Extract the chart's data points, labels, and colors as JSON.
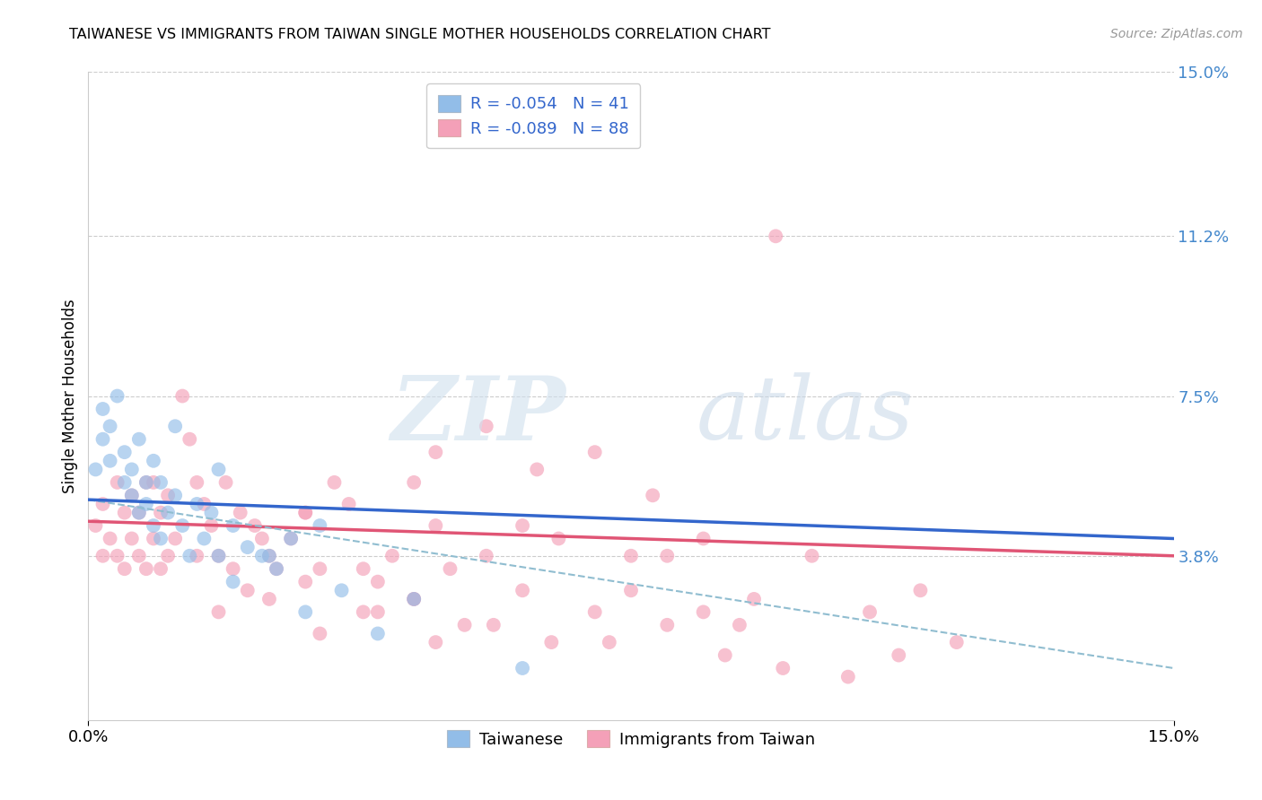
{
  "title": "TAIWANESE VS IMMIGRANTS FROM TAIWAN SINGLE MOTHER HOUSEHOLDS CORRELATION CHART",
  "source": "Source: ZipAtlas.com",
  "ylabel": "Single Mother Households",
  "xlim": [
    0,
    0.15
  ],
  "ylim": [
    0,
    0.15
  ],
  "ytick_values_right": [
    0.15,
    0.112,
    0.075,
    0.038
  ],
  "ytick_labels_right": [
    "15.0%",
    "11.2%",
    "7.5%",
    "3.8%"
  ],
  "legend_R1": "-0.054",
  "legend_N1": "41",
  "legend_R2": "-0.089",
  "legend_N2": "88",
  "color_taiwanese": "#92BDE8",
  "color_immigrants": "#F4A0B8",
  "trendline_taiwanese_color": "#3366CC",
  "trendline_immigrants_color": "#E05575",
  "trendline_dashed_color": "#90BDD0",
  "background_color": "#FFFFFF",
  "tw_trend_start": 0.051,
  "tw_trend_end": 0.042,
  "im_trend_start": 0.046,
  "im_trend_end": 0.038,
  "dash_trend_start": 0.051,
  "dash_trend_end": 0.012,
  "taiwanese_x": [
    0.001,
    0.002,
    0.002,
    0.003,
    0.003,
    0.004,
    0.005,
    0.005,
    0.006,
    0.006,
    0.007,
    0.007,
    0.008,
    0.008,
    0.009,
    0.009,
    0.01,
    0.01,
    0.011,
    0.012,
    0.013,
    0.014,
    0.015,
    0.016,
    0.017,
    0.018,
    0.02,
    0.022,
    0.024,
    0.026,
    0.028,
    0.032,
    0.035,
    0.04,
    0.012,
    0.018,
    0.025,
    0.03,
    0.045,
    0.06,
    0.02
  ],
  "taiwanese_y": [
    0.058,
    0.072,
    0.065,
    0.068,
    0.06,
    0.075,
    0.055,
    0.062,
    0.058,
    0.052,
    0.065,
    0.048,
    0.055,
    0.05,
    0.06,
    0.045,
    0.055,
    0.042,
    0.048,
    0.052,
    0.045,
    0.038,
    0.05,
    0.042,
    0.048,
    0.038,
    0.045,
    0.04,
    0.038,
    0.035,
    0.042,
    0.045,
    0.03,
    0.02,
    0.068,
    0.058,
    0.038,
    0.025,
    0.028,
    0.012,
    0.032
  ],
  "immigrants_x": [
    0.001,
    0.002,
    0.002,
    0.003,
    0.004,
    0.004,
    0.005,
    0.005,
    0.006,
    0.006,
    0.007,
    0.007,
    0.008,
    0.008,
    0.009,
    0.009,
    0.01,
    0.01,
    0.011,
    0.011,
    0.012,
    0.013,
    0.014,
    0.015,
    0.015,
    0.016,
    0.017,
    0.018,
    0.019,
    0.02,
    0.021,
    0.022,
    0.023,
    0.024,
    0.025,
    0.026,
    0.028,
    0.03,
    0.032,
    0.034,
    0.036,
    0.038,
    0.04,
    0.042,
    0.045,
    0.048,
    0.05,
    0.055,
    0.06,
    0.065,
    0.07,
    0.075,
    0.08,
    0.085,
    0.09,
    0.095,
    0.1,
    0.108,
    0.115,
    0.12,
    0.048,
    0.055,
    0.062,
    0.07,
    0.078,
    0.085,
    0.092,
    0.03,
    0.038,
    0.045,
    0.052,
    0.018,
    0.025,
    0.032,
    0.04,
    0.048,
    0.056,
    0.064,
    0.072,
    0.08,
    0.088,
    0.096,
    0.105,
    0.112,
    0.03,
    0.045,
    0.06,
    0.075
  ],
  "immigrants_y": [
    0.045,
    0.05,
    0.038,
    0.042,
    0.055,
    0.038,
    0.048,
    0.035,
    0.042,
    0.052,
    0.038,
    0.048,
    0.055,
    0.035,
    0.042,
    0.055,
    0.035,
    0.048,
    0.038,
    0.052,
    0.042,
    0.075,
    0.065,
    0.055,
    0.038,
    0.05,
    0.045,
    0.038,
    0.055,
    0.035,
    0.048,
    0.03,
    0.045,
    0.042,
    0.038,
    0.035,
    0.042,
    0.048,
    0.035,
    0.055,
    0.05,
    0.035,
    0.032,
    0.038,
    0.028,
    0.045,
    0.035,
    0.038,
    0.03,
    0.042,
    0.025,
    0.03,
    0.038,
    0.025,
    0.022,
    0.112,
    0.038,
    0.025,
    0.03,
    0.018,
    0.062,
    0.068,
    0.058,
    0.062,
    0.052,
    0.042,
    0.028,
    0.032,
    0.025,
    0.028,
    0.022,
    0.025,
    0.028,
    0.02,
    0.025,
    0.018,
    0.022,
    0.018,
    0.018,
    0.022,
    0.015,
    0.012,
    0.01,
    0.015,
    0.048,
    0.055,
    0.045,
    0.038
  ]
}
